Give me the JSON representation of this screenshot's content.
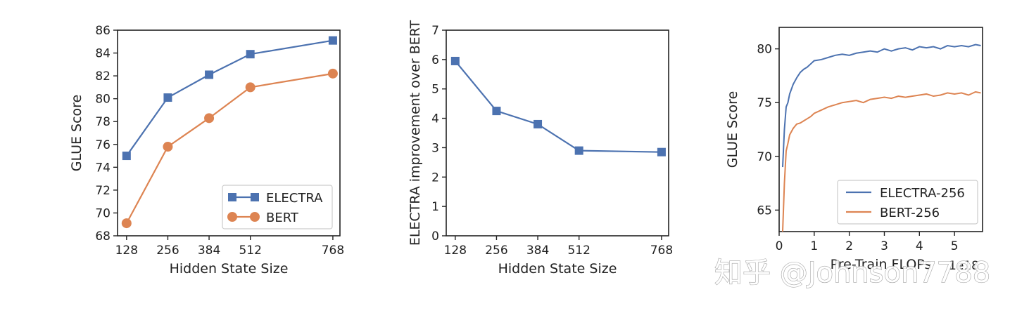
{
  "colors": {
    "electra": "#4c72b0",
    "bert": "#dd8452",
    "axis": "#222222"
  },
  "watermark": {
    "text": "知乎 @Johnson7788"
  },
  "chart_data": [
    {
      "type": "line",
      "xlabel": "Hidden State Size",
      "ylabel": "GLUE Score",
      "x": [
        128,
        256,
        384,
        512,
        768
      ],
      "xticks": [
        "128",
        "256",
        "384",
        "512",
        "768"
      ],
      "xlim": [
        100,
        790
      ],
      "ylim": [
        68,
        86
      ],
      "yticks": [
        "68",
        "70",
        "72",
        "74",
        "76",
        "78",
        "80",
        "82",
        "84",
        "86"
      ],
      "legend": "lower-right",
      "series": [
        {
          "name": "ELECTRA",
          "marker": "square",
          "color": "#4c72b0",
          "values": [
            75.0,
            80.1,
            82.1,
            83.9,
            85.1
          ]
        },
        {
          "name": "BERT",
          "marker": "circle",
          "color": "#dd8452",
          "values": [
            69.1,
            75.8,
            78.3,
            81.0,
            82.2
          ]
        }
      ]
    },
    {
      "type": "line",
      "xlabel": "Hidden State Size",
      "ylabel": "ELECTRA improvement over BERT",
      "x": [
        128,
        256,
        384,
        512,
        768
      ],
      "xticks": [
        "128",
        "256",
        "384",
        "512",
        "768"
      ],
      "xlim": [
        100,
        790
      ],
      "ylim": [
        0,
        7
      ],
      "yticks": [
        "0",
        "1",
        "2",
        "3",
        "4",
        "5",
        "6",
        "7"
      ],
      "series": [
        {
          "marker": "square",
          "color": "#4c72b0",
          "values": [
            5.95,
            4.25,
            3.8,
            2.9,
            2.85
          ]
        }
      ]
    },
    {
      "type": "line",
      "xlabel": "Pre-Train FLOPs",
      "x_offset_label": "1e18",
      "ylabel": "GLUE Score",
      "xlim": [
        0,
        5.8
      ],
      "ylim": [
        63,
        82
      ],
      "xticks": [
        "0",
        "1",
        "2",
        "3",
        "4",
        "5"
      ],
      "yticks": [
        "65",
        "70",
        "75",
        "80"
      ],
      "legend": "lower-right",
      "series": [
        {
          "name": "ELECTRA-256",
          "color": "#4c72b0",
          "x": [
            0.1,
            0.15,
            0.2,
            0.25,
            0.3,
            0.4,
            0.5,
            0.6,
            0.7,
            0.8,
            0.9,
            1.0,
            1.2,
            1.4,
            1.6,
            1.8,
            2.0,
            2.2,
            2.4,
            2.6,
            2.8,
            3.0,
            3.2,
            3.4,
            3.6,
            3.8,
            4.0,
            4.2,
            4.4,
            4.6,
            4.8,
            5.0,
            5.2,
            5.4,
            5.6,
            5.75
          ],
          "y": [
            69.0,
            72.5,
            74.6,
            75.0,
            75.8,
            76.7,
            77.3,
            77.8,
            78.1,
            78.3,
            78.6,
            78.9,
            79.0,
            79.2,
            79.4,
            79.5,
            79.4,
            79.6,
            79.7,
            79.8,
            79.7,
            80.0,
            79.8,
            80.0,
            80.1,
            79.9,
            80.2,
            80.1,
            80.2,
            80.0,
            80.3,
            80.2,
            80.3,
            80.2,
            80.4,
            80.3
          ]
        },
        {
          "name": "BERT-256",
          "color": "#dd8452",
          "x": [
            0.1,
            0.15,
            0.2,
            0.25,
            0.3,
            0.4,
            0.5,
            0.6,
            0.7,
            0.8,
            0.9,
            1.0,
            1.2,
            1.4,
            1.6,
            1.8,
            2.0,
            2.2,
            2.4,
            2.6,
            2.8,
            3.0,
            3.2,
            3.4,
            3.6,
            3.8,
            4.0,
            4.2,
            4.4,
            4.6,
            4.8,
            5.0,
            5.2,
            5.4,
            5.6,
            5.75
          ],
          "y": [
            63.0,
            67.5,
            70.5,
            71.2,
            72.0,
            72.6,
            73.0,
            73.1,
            73.3,
            73.5,
            73.7,
            74.0,
            74.3,
            74.6,
            74.8,
            75.0,
            75.1,
            75.2,
            75.0,
            75.3,
            75.4,
            75.5,
            75.4,
            75.6,
            75.5,
            75.6,
            75.7,
            75.8,
            75.6,
            75.7,
            75.9,
            75.8,
            75.9,
            75.7,
            76.0,
            75.9
          ]
        }
      ]
    }
  ]
}
